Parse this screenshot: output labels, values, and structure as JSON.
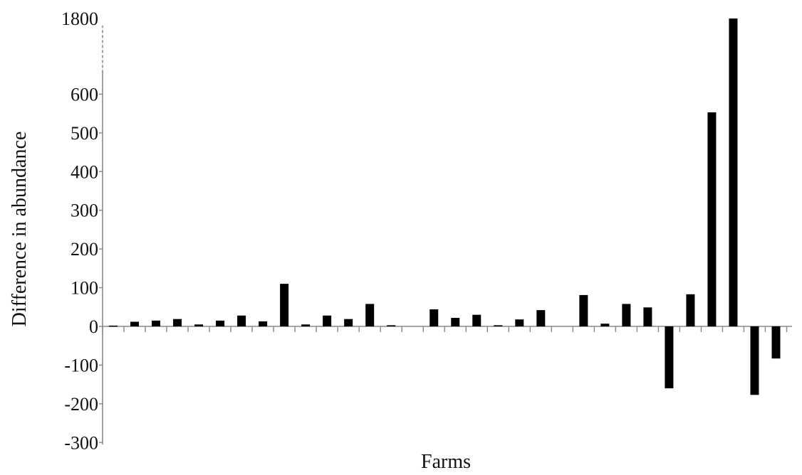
{
  "chart_data": {
    "type": "bar",
    "xlabel": "Farms",
    "ylabel": "Difference in abundance",
    "ylim": [
      -300,
      1800
    ],
    "axis_break": {
      "from": 600,
      "to": 1800
    },
    "y_ticks": [
      {
        "value": -300,
        "label": "-300"
      },
      {
        "value": -200,
        "label": "-200"
      },
      {
        "value": -100,
        "label": "-100"
      },
      {
        "value": 0,
        "label": "0"
      },
      {
        "value": 100,
        "label": "100"
      },
      {
        "value": 200,
        "label": "200"
      },
      {
        "value": 300,
        "label": "300"
      },
      {
        "value": 400,
        "label": "400"
      },
      {
        "value": 500,
        "label": "500"
      },
      {
        "value": 600,
        "label": "600"
      },
      {
        "value": 1800,
        "label": "1800"
      }
    ],
    "values": [
      2,
      12,
      15,
      19,
      5,
      15,
      28,
      13,
      110,
      5,
      28,
      19,
      58,
      3,
      0,
      44,
      22,
      30,
      3,
      18,
      42,
      0,
      81,
      7,
      58,
      49,
      -160,
      83,
      553,
      1800,
      -177,
      -83
    ],
    "grid": false,
    "legend": "none"
  }
}
